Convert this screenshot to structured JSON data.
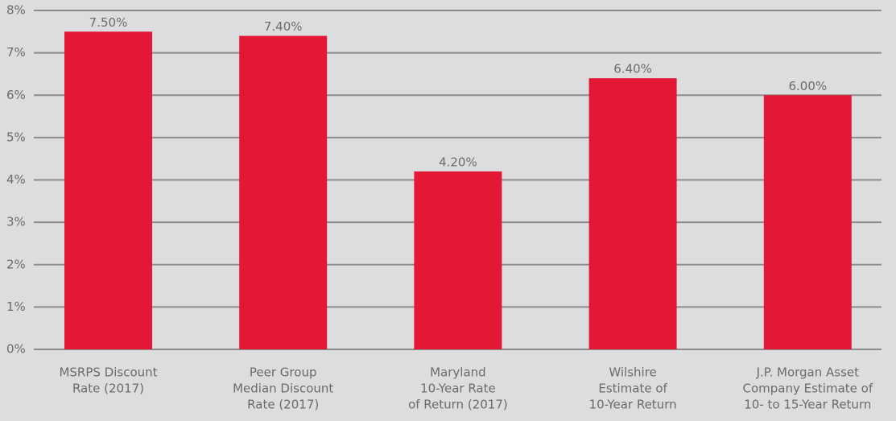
{
  "chart_data": {
    "type": "bar",
    "categories": [
      [
        "MSRPS Discount",
        "Rate (2017)"
      ],
      [
        "Peer Group",
        "Median Discount",
        "Rate (2017)"
      ],
      [
        "Maryland",
        "10-Year Rate",
        "of Return (2017)"
      ],
      [
        "Wilshire",
        "Estimate of",
        "10-Year Return"
      ],
      [
        "J.P. Morgan Asset",
        "Company Estimate of",
        "10- to 15-Year Return"
      ]
    ],
    "values": [
      7.5,
      7.4,
      4.2,
      6.4,
      6.0
    ],
    "value_labels": [
      "7.50%",
      "7.40%",
      "4.20%",
      "6.40%",
      "6.00%"
    ],
    "color": "#e31837",
    "ylim": [
      0,
      8
    ],
    "yticks": [
      {
        "value": 0,
        "label": "0%"
      },
      {
        "value": 1,
        "label": "1%"
      },
      {
        "value": 2,
        "label": "2%"
      },
      {
        "value": 3,
        "label": "3%"
      },
      {
        "value": 4,
        "label": "4%"
      },
      {
        "value": 5,
        "label": "5%"
      },
      {
        "value": 6,
        "label": "6%"
      },
      {
        "value": 7,
        "label": "7%"
      },
      {
        "value": 8,
        "label": "8%"
      }
    ],
    "grid": true
  }
}
